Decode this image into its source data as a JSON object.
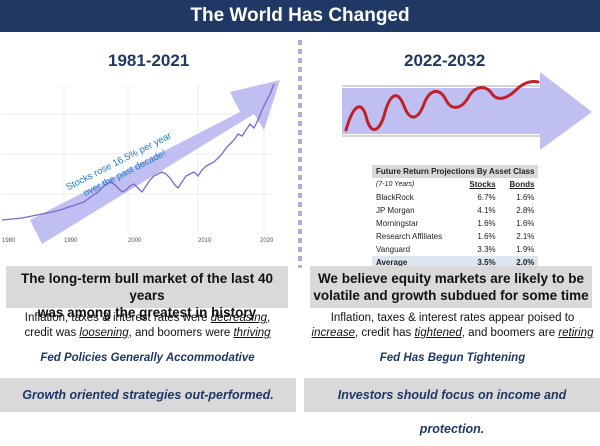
{
  "title": "The World Has Changed",
  "left": {
    "period": "1981-2021",
    "arrow_text_line1": "Stocks rose 16.5% per year",
    "arrow_text_line2": "over the past decade!",
    "axis_ticks": [
      "1980",
      "1990",
      "2000",
      "2010",
      "2020"
    ],
    "callout_line1": "The long-term bull market of the last 40 years",
    "callout_line2": "was among the greatest in history",
    "sub_line1_a": "Inflation, taxes & interest rates were ",
    "sub_line1_em": "decreasing",
    "sub_line1_b": ",",
    "sub_line2_a": "credit was ",
    "sub_line2_em1": "loosening",
    "sub_line2_b": ", and boomers were ",
    "sub_line2_em2": "thriving",
    "policy": "Fed Policies Generally Accommodative",
    "bottom": "Growth oriented strategies out-performed."
  },
  "right": {
    "period": "2022-2032",
    "table": {
      "title": "Future Return Projections By Asset Class",
      "subtitle": "(7-10 Years)",
      "col_stocks": "Stocks",
      "col_bonds": "Bonds",
      "rows": [
        {
          "name": "BlackRock",
          "stocks": "6.7%",
          "bonds": "1.6%"
        },
        {
          "name": "JP Morgan",
          "stocks": "4.1%",
          "bonds": "2.8%"
        },
        {
          "name": "Morningstar",
          "stocks": "1.6%",
          "bonds": "1.6%"
        },
        {
          "name": "Research Affiliates",
          "stocks": "1.6%",
          "bonds": "2.1%"
        },
        {
          "name": "Vanguard",
          "stocks": "3.3%",
          "bonds": "1.9%"
        }
      ],
      "avg_label": "Average",
      "avg_stocks": "3.5%",
      "avg_bonds": "2.0%"
    },
    "callout_line1": "We believe equity markets are likely to be",
    "callout_line2": "volatile and growth subdued for some time",
    "sub_line1": "Inflation, taxes & interest rates appear poised to",
    "sub_line2_em1": "increase",
    "sub_line2_a": ", credit has ",
    "sub_line2_em2": "tightened",
    "sub_line2_b": ", and boomers are ",
    "sub_line2_em3": "retiring",
    "policy": "Fed Has Begun Tightening",
    "bottom": "Investors should focus on income and protection."
  },
  "colors": {
    "navy": "#1f3864",
    "arrow": "#b4b4f0",
    "line": "#7b68c8",
    "wave": "#c0202a",
    "callout_bg": "#d9d9d9"
  }
}
